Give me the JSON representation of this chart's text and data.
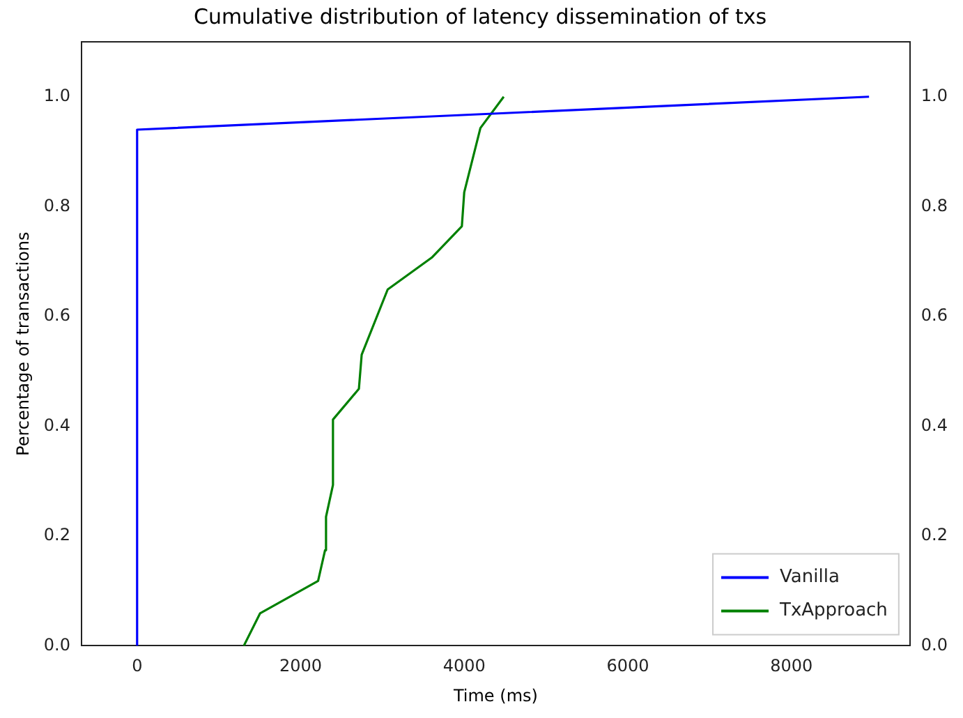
{
  "chart_data": {
    "type": "line",
    "title": "Cumulative distribution of latency dissemination of txs",
    "xlabel": "Time (ms)",
    "ylabel": "Percentage of transactions",
    "xlim": [
      -680,
      9450
    ],
    "xticks": [
      0,
      2000,
      4000,
      6000,
      8000
    ],
    "ylim": [
      0,
      1.1
    ],
    "yticks": [
      {
        "value": 0,
        "label": "0.0"
      },
      {
        "value": 0.2,
        "label": "0.2"
      },
      {
        "value": 0.4,
        "label": "0.4"
      },
      {
        "value": 0.6,
        "label": "0.6"
      },
      {
        "value": 0.8,
        "label": "0.8"
      },
      {
        "value": 1,
        "label": "1.0"
      }
    ],
    "y2lim": [
      0,
      1.1
    ],
    "y2ticks": [
      {
        "value": 0,
        "label": "0.0"
      },
      {
        "value": 0.2,
        "label": "0.2"
      },
      {
        "value": 0.4,
        "label": "0.4"
      },
      {
        "value": 0.6,
        "label": "0.6"
      },
      {
        "value": 0.8,
        "label": "0.8"
      },
      {
        "value": 1,
        "label": "1.0"
      }
    ],
    "grid": false,
    "legend": "bottom right",
    "marker": "none",
    "line_style": "solid",
    "series": [
      {
        "name": "Vanilla",
        "color": "#0000ff",
        "x": [
          0,
          0,
          8950
        ],
        "values": [
          0,
          0.94,
          1.0
        ]
      },
      {
        "name": "TxApproach",
        "color": "#008000",
        "x": [
          1305,
          1503,
          2213,
          2298,
          2310,
          2395,
          2395,
          2712,
          2746,
          3064,
          3603,
          3971,
          4000,
          4198,
          4483
        ],
        "values": [
          0,
          0.059,
          0.118,
          0.174,
          0.235,
          0.293,
          0.412,
          0.468,
          0.53,
          0.649,
          0.707,
          0.764,
          0.826,
          0.943,
          1.0
        ]
      }
    ]
  }
}
